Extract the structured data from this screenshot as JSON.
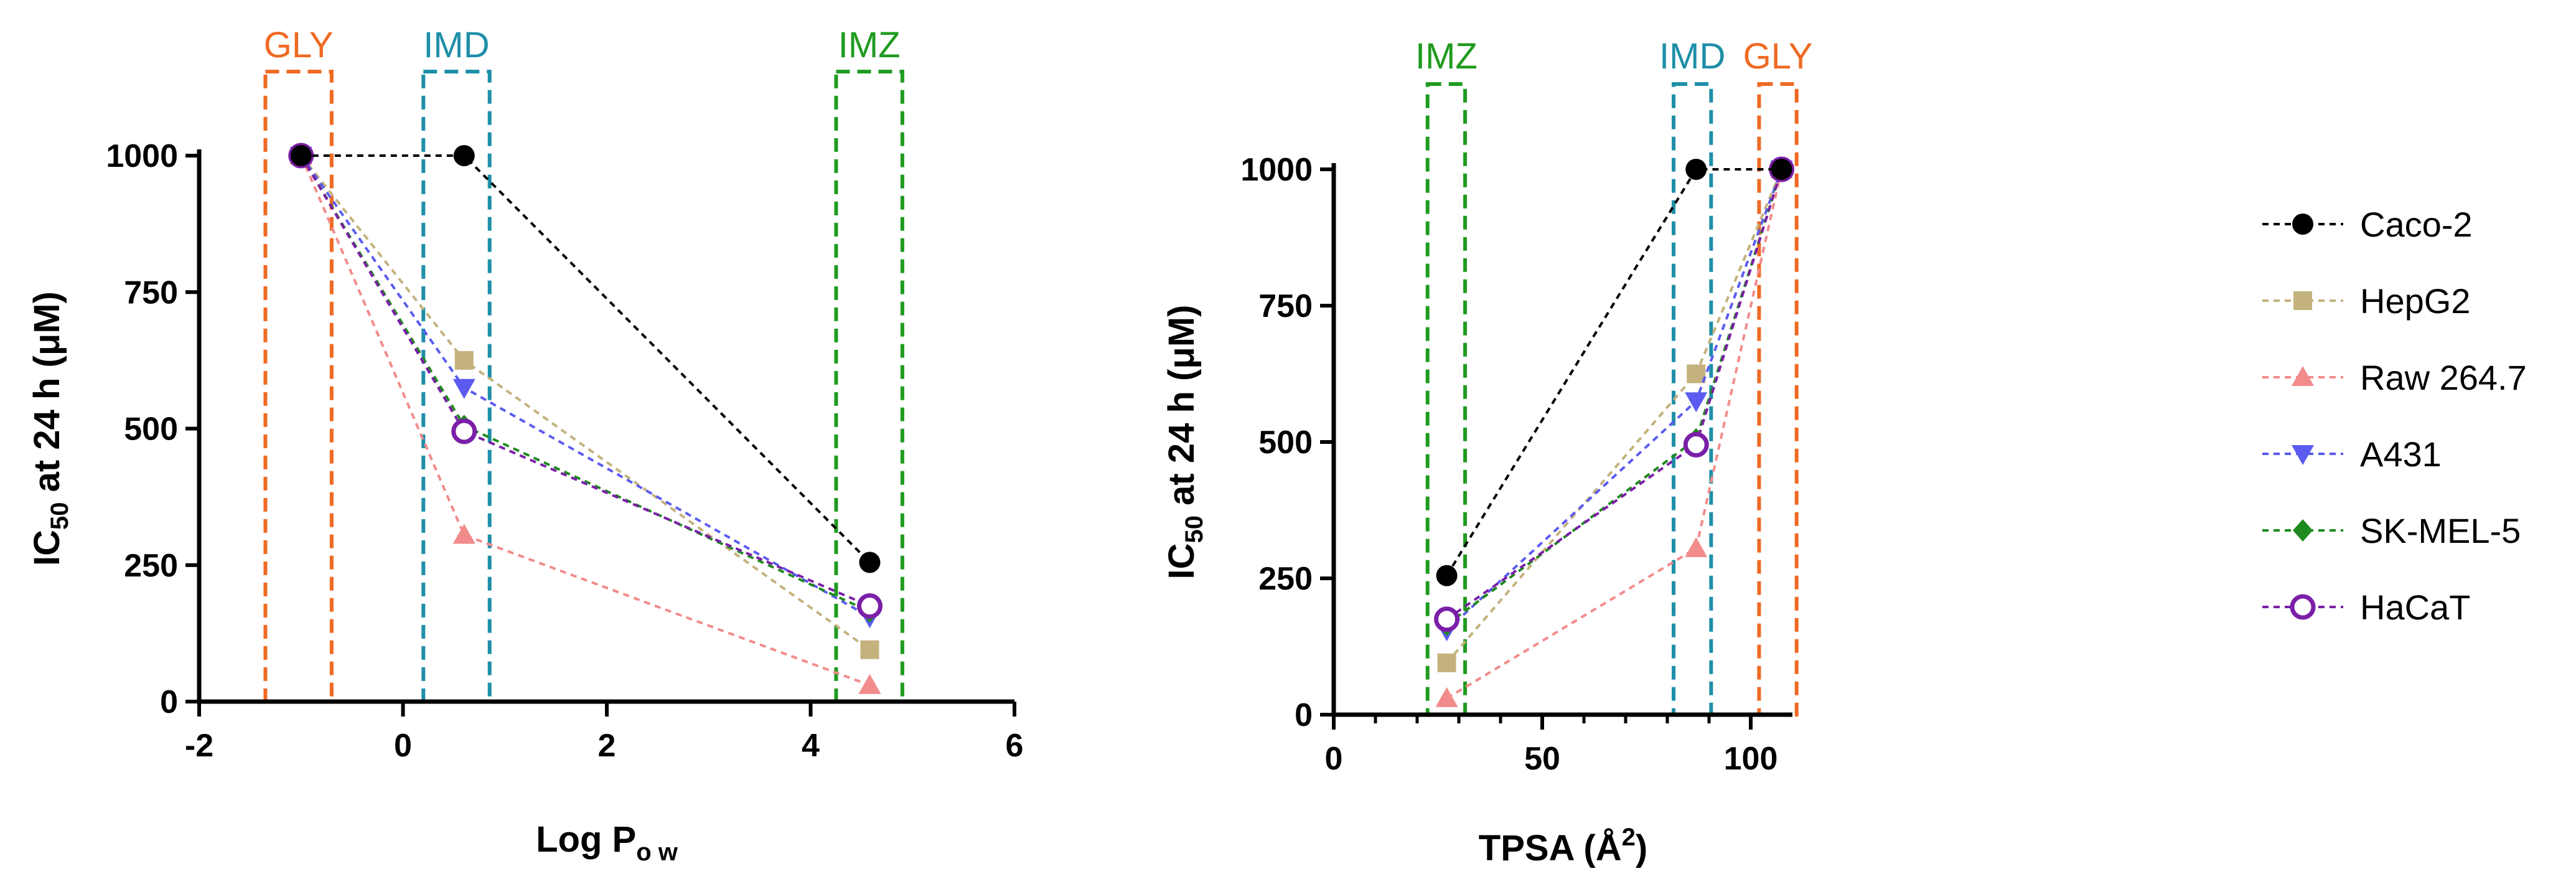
{
  "chart_data": [
    {
      "type": "line",
      "id": "left",
      "xlabel": "Log P",
      "xlabel_sub": "o w",
      "ylabel": "IC",
      "ylabel_sub": "50",
      "ylabel_rest": " at 24 h (μM)",
      "xlim": [
        -2,
        6
      ],
      "ylim": [
        0,
        1000
      ],
      "xticks": [
        -2,
        0,
        2,
        4,
        6
      ],
      "yticks": [
        0,
        250,
        500,
        750,
        1000
      ],
      "x": [
        -1.0,
        0.6,
        4.58
      ],
      "series": [
        {
          "name": "Caco-2",
          "values": [
            1000,
            1000,
            255
          ]
        },
        {
          "name": "HepG2",
          "values": [
            1000,
            625,
            95
          ]
        },
        {
          "name": "Raw 264.7",
          "values": [
            1000,
            305,
            30
          ]
        },
        {
          "name": "A431",
          "values": [
            1000,
            575,
            155
          ]
        },
        {
          "name": "SK-MEL-5",
          "values": [
            1000,
            505,
            165
          ]
        },
        {
          "name": "HaCaT",
          "values": [
            1000,
            495,
            175
          ]
        }
      ],
      "annotations": [
        {
          "label": "GLY",
          "x_range": [
            -1.35,
            -0.7
          ],
          "color": "#ef6a23"
        },
        {
          "label": "IMD",
          "x_range": [
            0.2,
            0.85
          ],
          "color": "#1e8fa8"
        },
        {
          "label": "IMZ",
          "x_range": [
            4.25,
            4.9
          ],
          "color": "#1f9b1f"
        }
      ]
    },
    {
      "type": "line",
      "id": "right",
      "xlabel": "TPSA (Å",
      "xlabel_sup": "2",
      "xlabel_rest": ")",
      "ylabel": "IC",
      "ylabel_sub": "50",
      "ylabel_rest": " at 24 h (μM)",
      "xlim": [
        0,
        110
      ],
      "ylim": [
        0,
        1000
      ],
      "xticks": [
        0,
        50,
        100
      ],
      "yticks": [
        0,
        250,
        500,
        750,
        1000
      ],
      "x": [
        27.1,
        86.9,
        107.4
      ],
      "series": [
        {
          "name": "Caco-2",
          "values": [
            255,
            1000,
            1000
          ]
        },
        {
          "name": "HepG2",
          "values": [
            95,
            625,
            1000
          ]
        },
        {
          "name": "Raw 264.7",
          "values": [
            30,
            305,
            1000
          ]
        },
        {
          "name": "A431",
          "values": [
            155,
            575,
            1000
          ]
        },
        {
          "name": "SK-MEL-5",
          "values": [
            165,
            505,
            1000
          ]
        },
        {
          "name": "HaCaT",
          "values": [
            175,
            495,
            1000
          ]
        }
      ],
      "annotations": [
        {
          "label": "IMZ",
          "x_range": [
            22.5,
            31.5
          ],
          "color": "#1f9b1f"
        },
        {
          "label": "IMD",
          "x_range": [
            81.5,
            90.5
          ],
          "color": "#1e8fa8"
        },
        {
          "label": "GLY",
          "x_range": [
            102,
            111
          ],
          "color": "#ef6a23"
        }
      ]
    }
  ],
  "legend": {
    "placement": "right",
    "items": [
      {
        "name": "Caco-2",
        "color": "#000000",
        "marker": "circle"
      },
      {
        "name": "HepG2",
        "color": "#c3b27d",
        "marker": "square"
      },
      {
        "name": "Raw 264.7",
        "color": "#f28b8b",
        "marker": "triangle-up"
      },
      {
        "name": "A431",
        "color": "#5b5bf0",
        "marker": "triangle-down"
      },
      {
        "name": "SK-MEL-5",
        "color": "#1f8a1f",
        "marker": "diamond"
      },
      {
        "name": "HaCaT",
        "color": "#7b1fa8",
        "marker": "open-circle"
      }
    ]
  }
}
